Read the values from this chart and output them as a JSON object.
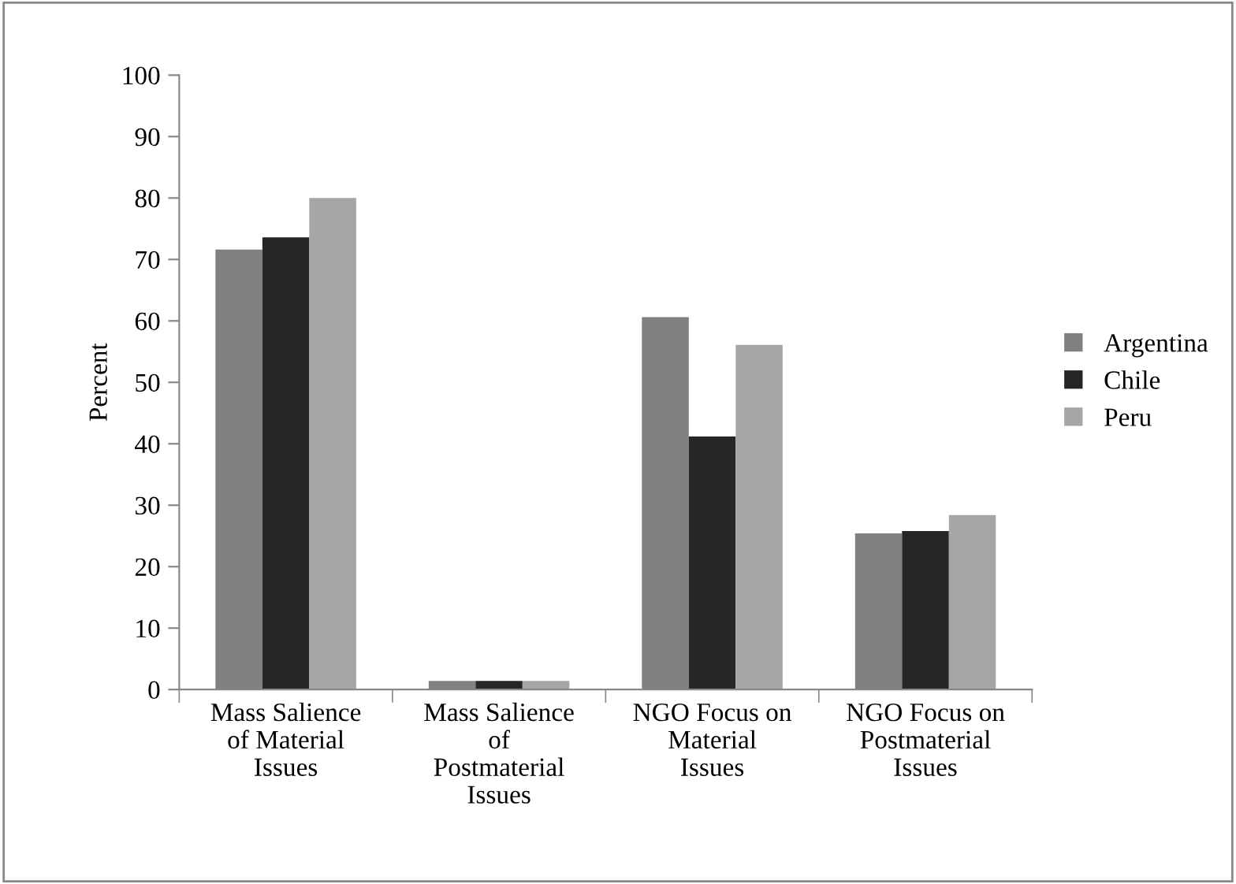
{
  "chart_data": {
    "type": "bar",
    "ylabel": "Percent",
    "categories": [
      "Mass Salience\nof Material\nIssues",
      "Mass Salience\nof\nPostmaterial\nIssues",
      "NGO Focus on\nMaterial\nIssues",
      "NGO Focus on\nPostmaterial\nIssues"
    ],
    "series": [
      {
        "name": "Argentina",
        "color": "#808080",
        "values": [
          71.6,
          1.4,
          60.6,
          25.4
        ]
      },
      {
        "name": "Chile",
        "color": "#262626",
        "values": [
          73.6,
          1.4,
          41.2,
          25.8
        ]
      },
      {
        "name": "Peru",
        "color": "#a6a6a6",
        "values": [
          80.0,
          1.4,
          56.1,
          28.4
        ]
      }
    ],
    "ylim": [
      0,
      100
    ],
    "yticks": [
      0,
      10,
      20,
      30,
      40,
      50,
      60,
      70,
      80,
      90,
      100
    ],
    "grid": false,
    "legend": "right"
  }
}
